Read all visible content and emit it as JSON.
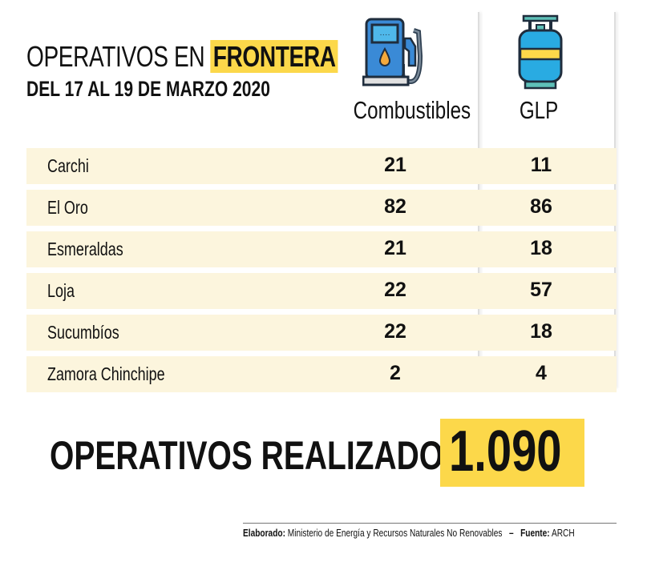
{
  "title": {
    "prefix": "OPERATIVOS EN",
    "highlight": "FRONTERA"
  },
  "subtitle": "DEL 17 AL 19 DE MARZO 2020",
  "chart_data": {
    "type": "table",
    "columns": [
      "Combustibles",
      "GLP"
    ],
    "column_icons": [
      "fuel-pump-icon",
      "gas-cylinder-icon"
    ],
    "rows": [
      {
        "label": "Carchi",
        "values": [
          21,
          11
        ]
      },
      {
        "label": "El Oro",
        "values": [
          82,
          86
        ]
      },
      {
        "label": "Esmeraldas",
        "values": [
          21,
          18
        ]
      },
      {
        "label": "Loja",
        "values": [
          22,
          57
        ]
      },
      {
        "label": "Sucumbíos",
        "values": [
          22,
          18
        ]
      },
      {
        "label": "Zamora Chinchipe",
        "values": [
          2,
          4
        ]
      }
    ]
  },
  "total": {
    "label": "OPERATIVOS REALIZADOS",
    "value": "1.090"
  },
  "footer": {
    "made_by_label": "Elaborado:",
    "made_by": "Ministerio de Energía y Recursos Naturales No Renovables",
    "sep": "–",
    "source_label": "Fuente:",
    "source": "ARCH"
  },
  "colors": {
    "highlight": "#fcd84a",
    "row_bg": "#fcf5dd"
  }
}
